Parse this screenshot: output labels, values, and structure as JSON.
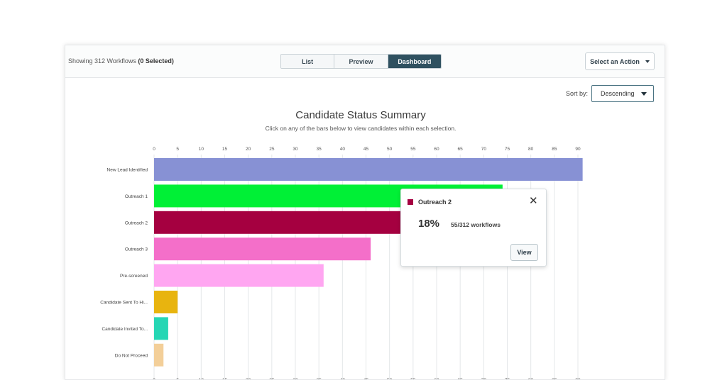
{
  "header": {
    "showing_prefix": "Showing 312 Workflows",
    "showing_selected": "(0 Selected)",
    "views": [
      {
        "label": "List",
        "active": false
      },
      {
        "label": "Preview",
        "active": false
      },
      {
        "label": "Dashboard",
        "active": true
      }
    ],
    "action_label": "Select an Action"
  },
  "sort": {
    "label": "Sort by:",
    "value": "Descending"
  },
  "chart_data": {
    "type": "bar",
    "orientation": "horizontal",
    "title": "Candidate Status Summary",
    "subtitle": "Click on any of the bars below to view candidates within each selection.",
    "categories": [
      "New Lead Identified",
      "Outreach 1",
      "Outreach 2",
      "Outreach 3",
      "Pre-screened",
      "Candidate Sent To Hi...",
      "Candidate Invited To...",
      "Do Not Proceed"
    ],
    "values": [
      91,
      74,
      55,
      46,
      36,
      5,
      3,
      2
    ],
    "colors": [
      "#8791d4",
      "#00f036",
      "#a50040",
      "#f46fc9",
      "#ffa6f1",
      "#e8b40f",
      "#26d6b4",
      "#f3cf99"
    ],
    "xlim": [
      0,
      90
    ],
    "xticks": [
      0,
      5,
      10,
      15,
      20,
      25,
      30,
      35,
      40,
      45,
      50,
      55,
      60,
      65,
      70,
      75,
      80,
      85,
      90
    ],
    "grid": true
  },
  "tooltip": {
    "title": "Outreach 2",
    "percent": "18%",
    "count": "55/312 workflows",
    "close_glyph": "✕",
    "view_label": "View",
    "swatch_color": "#a50040"
  }
}
